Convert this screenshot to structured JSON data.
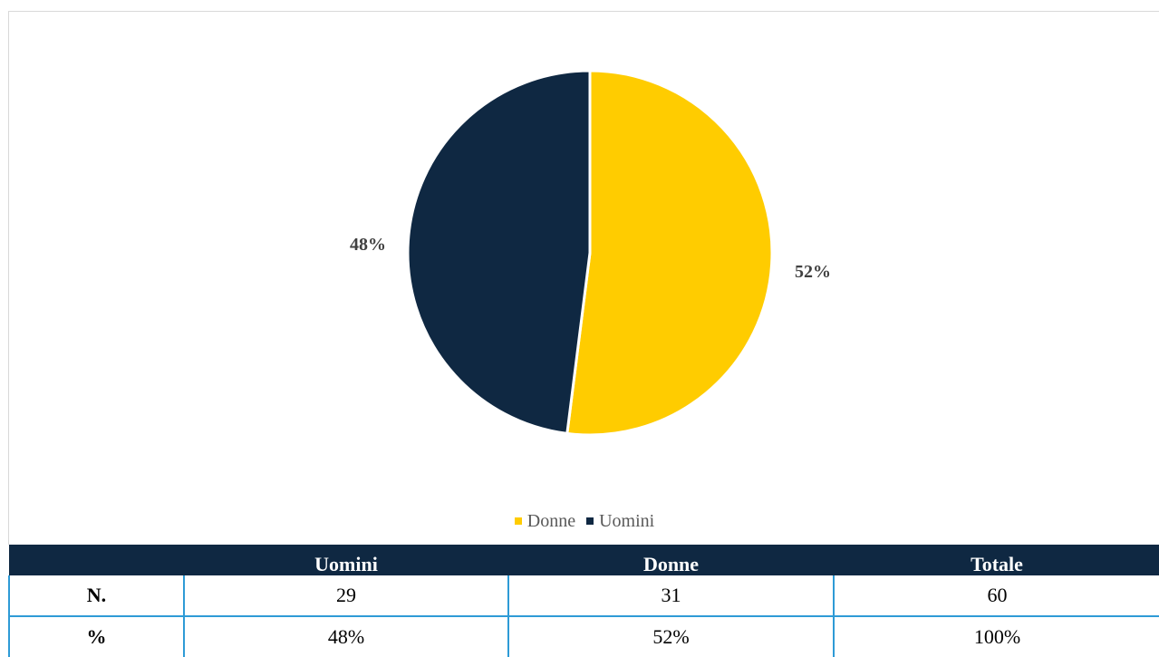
{
  "colors": {
    "donne": "#ffcc00",
    "uomini": "#0f2842",
    "table_header": "#0f2842",
    "table_border": "#2e9bd6"
  },
  "chart_data": {
    "type": "pie",
    "start_angle_deg": 0,
    "slices": [
      {
        "name": "Donne",
        "value": 52,
        "label": "52%",
        "color": "#ffcc00"
      },
      {
        "name": "Uomini",
        "value": 48,
        "label": "48%",
        "color": "#0f2842"
      }
    ],
    "legend": {
      "placement": "bottom",
      "entries": [
        "Donne",
        "Uomini"
      ]
    }
  },
  "table": {
    "headers": [
      "",
      "Uomini",
      "Donne",
      "Totale"
    ],
    "rows": [
      {
        "label": "N.",
        "values": [
          "29",
          "31",
          "60"
        ]
      },
      {
        "label": "%",
        "values": [
          "48%",
          "52%",
          "100%"
        ]
      }
    ]
  }
}
